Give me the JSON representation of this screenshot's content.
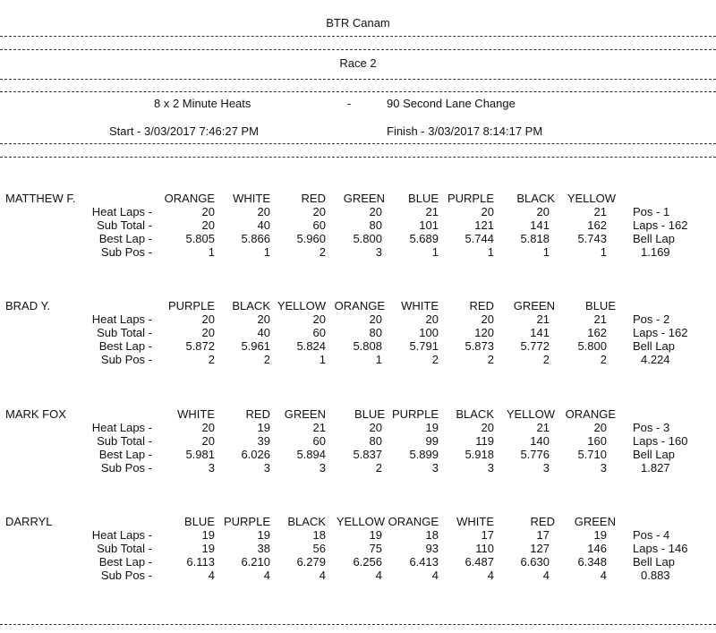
{
  "header": {
    "title": "BTR Canam",
    "race": "Race 2",
    "heats": "8 x 2 Minute Heats",
    "separator": "-",
    "lane_change": "90 Second Lane Change",
    "start": "Start - 3/03/2017 7:46:27 PM",
    "finish": "Finish - 3/03/2017 8:14:17 PM"
  },
  "row_labels": [
    "Heat Laps -",
    "Sub Total -",
    "Best Lap -",
    "Sub Pos -"
  ],
  "racers": [
    {
      "name": "MATTHEW F.",
      "lanes": [
        "ORANGE",
        "WHITE",
        "RED",
        "GREEN",
        "BLUE",
        "PURPLE",
        "BLACK",
        "YELLOW"
      ],
      "rows": [
        [
          "20",
          "20",
          "20",
          "20",
          "21",
          "20",
          "20",
          "21"
        ],
        [
          "20",
          "40",
          "60",
          "80",
          "101",
          "121",
          "141",
          "162"
        ],
        [
          "5.805",
          "5.866",
          "5.960",
          "5.800",
          "5.689",
          "5.744",
          "5.818",
          "5.743"
        ],
        [
          "1",
          "1",
          "2",
          "3",
          "1",
          "1",
          "1",
          "1"
        ]
      ],
      "side": [
        "Pos - 1",
        "Laps - 162",
        "Bell Lap",
        "1.169"
      ]
    },
    {
      "name": "BRAD Y.",
      "lanes": [
        "PURPLE",
        "BLACK",
        "YELLOW",
        "ORANGE",
        "WHITE",
        "RED",
        "GREEN",
        "BLUE"
      ],
      "rows": [
        [
          "20",
          "20",
          "20",
          "20",
          "20",
          "20",
          "21",
          "21"
        ],
        [
          "20",
          "40",
          "60",
          "80",
          "100",
          "120",
          "141",
          "162"
        ],
        [
          "5.872",
          "5.961",
          "5.824",
          "5.808",
          "5.791",
          "5.873",
          "5.772",
          "5.800"
        ],
        [
          "2",
          "2",
          "1",
          "1",
          "2",
          "2",
          "2",
          "2"
        ]
      ],
      "side": [
        "Pos - 2",
        "Laps - 162",
        "Bell Lap",
        "4.224"
      ]
    },
    {
      "name": "MARK FOX",
      "lanes": [
        "WHITE",
        "RED",
        "GREEN",
        "BLUE",
        "PURPLE",
        "BLACK",
        "YELLOW",
        "ORANGE"
      ],
      "rows": [
        [
          "20",
          "19",
          "21",
          "20",
          "19",
          "20",
          "21",
          "20"
        ],
        [
          "20",
          "39",
          "60",
          "80",
          "99",
          "119",
          "140",
          "160"
        ],
        [
          "5.981",
          "6.026",
          "5.894",
          "5.837",
          "5.899",
          "5.918",
          "5.776",
          "5.710"
        ],
        [
          "3",
          "3",
          "3",
          "2",
          "3",
          "3",
          "3",
          "3"
        ]
      ],
      "side": [
        "Pos - 3",
        "Laps - 160",
        "Bell Lap",
        "1.827"
      ]
    },
    {
      "name": "DARRYL",
      "lanes": [
        "BLUE",
        "PURPLE",
        "BLACK",
        "YELLOW",
        "ORANGE",
        "WHITE",
        "RED",
        "GREEN"
      ],
      "rows": [
        [
          "19",
          "19",
          "18",
          "19",
          "18",
          "17",
          "17",
          "19"
        ],
        [
          "19",
          "38",
          "56",
          "75",
          "93",
          "110",
          "127",
          "146"
        ],
        [
          "6.113",
          "6.210",
          "6.279",
          "6.256",
          "6.413",
          "6.487",
          "6.630",
          "6.348"
        ],
        [
          "4",
          "4",
          "4",
          "4",
          "4",
          "4",
          "4",
          "4"
        ]
      ],
      "side": [
        "Pos - 4",
        "Laps - 146",
        "Bell Lap",
        "0.883"
      ]
    }
  ]
}
